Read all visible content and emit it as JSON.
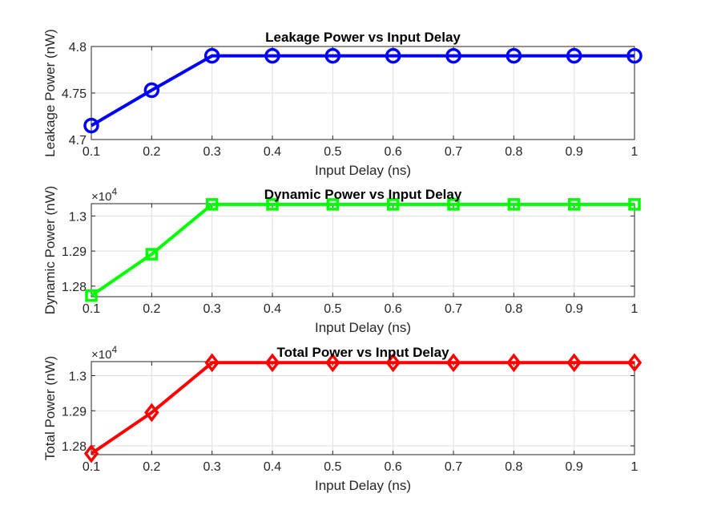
{
  "chart_data": [
    {
      "type": "line",
      "title": "Leakage Power vs Input Delay",
      "xlabel": "Input Delay (ns)",
      "ylabel": "Leakage Power (nW)",
      "exponent_label": "",
      "x": [
        0.1,
        0.2,
        0.3,
        0.4,
        0.5,
        0.6,
        0.7,
        0.8,
        0.9,
        1.0
      ],
      "series": [
        {
          "values": [
            4.715,
            4.753,
            4.79,
            4.79,
            4.79,
            4.79,
            4.79,
            4.79,
            4.79,
            4.79
          ],
          "color": "#0000ff",
          "marker": "circle"
        }
      ],
      "xlim": [
        0.1,
        1.0
      ],
      "ylim": [
        4.7,
        4.8
      ],
      "xticks": [
        "0.1",
        "0.2",
        "0.3",
        "0.4",
        "0.5",
        "0.6",
        "0.7",
        "0.8",
        "0.9",
        "1"
      ],
      "yticks": [
        {
          "value": 4.7,
          "label": "4.7"
        },
        {
          "value": 4.75,
          "label": "4.75"
        },
        {
          "value": 4.8,
          "label": "4.8"
        }
      ],
      "grid": true
    },
    {
      "type": "line",
      "title": "Dynamic Power vs Input Delay",
      "xlabel": "Input Delay (ns)",
      "ylabel": "Dynamic Power (nW)",
      "exponent_label": "×10",
      "exponent_power": "4",
      "x": [
        0.1,
        0.2,
        0.3,
        0.4,
        0.5,
        0.6,
        0.7,
        0.8,
        0.9,
        1.0
      ],
      "series": [
        {
          "values": [
            12773,
            12891,
            13033,
            13033,
            13033,
            13033,
            13033,
            13033,
            13033,
            13033
          ],
          "color": "#00ff00",
          "marker": "square"
        }
      ],
      "xlim": [
        0.1,
        1.0
      ],
      "ylim": [
        12770,
        13035
      ],
      "xticks": [
        "0.1",
        "0.2",
        "0.3",
        "0.4",
        "0.5",
        "0.6",
        "0.7",
        "0.8",
        "0.9",
        "1"
      ],
      "yticks": [
        {
          "value": 12800,
          "label": "1.28"
        },
        {
          "value": 12900,
          "label": "1.29"
        },
        {
          "value": 13000,
          "label": "1.3"
        }
      ],
      "grid": true
    },
    {
      "type": "line",
      "title": "Total Power vs Input Delay",
      "xlabel": "Input Delay (ns)",
      "ylabel": "Total Power (nW)",
      "exponent_label": "×10",
      "exponent_power": "4",
      "x": [
        0.1,
        0.2,
        0.3,
        0.4,
        0.5,
        0.6,
        0.7,
        0.8,
        0.9,
        1.0
      ],
      "series": [
        {
          "values": [
            12778,
            12895,
            13037,
            13037,
            13037,
            13037,
            13037,
            13037,
            13037,
            13037
          ],
          "color": "#ff0000",
          "marker": "diamond"
        }
      ],
      "xlim": [
        0.1,
        1.0
      ],
      "ylim": [
        12775,
        13040
      ],
      "xticks": [
        "0.1",
        "0.2",
        "0.3",
        "0.4",
        "0.5",
        "0.6",
        "0.7",
        "0.8",
        "0.9",
        "1"
      ],
      "yticks": [
        {
          "value": 12800,
          "label": "1.28"
        },
        {
          "value": 12900,
          "label": "1.29"
        },
        {
          "value": 13000,
          "label": "1.3"
        }
      ],
      "grid": true
    }
  ]
}
